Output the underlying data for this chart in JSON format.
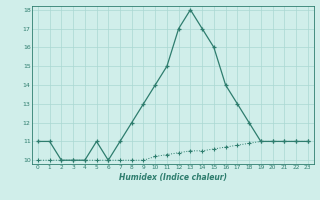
{
  "x": [
    0,
    1,
    2,
    3,
    4,
    5,
    6,
    7,
    8,
    9,
    10,
    11,
    12,
    13,
    14,
    15,
    16,
    17,
    18,
    19,
    20,
    21,
    22,
    23
  ],
  "line1": [
    11,
    11,
    10,
    10,
    10,
    11,
    10,
    11,
    12,
    13,
    14,
    15,
    17,
    18,
    17,
    16,
    14,
    13,
    12,
    11,
    11,
    11,
    11,
    11
  ],
  "line2": [
    10,
    10,
    10,
    10,
    10,
    10,
    10,
    10,
    10,
    10,
    10.2,
    10.3,
    10.4,
    10.5,
    10.5,
    10.6,
    10.7,
    10.8,
    10.9,
    11,
    11,
    11,
    11,
    11
  ],
  "line1_color": "#2e7d6e",
  "line2_color": "#2e7d6e",
  "bg_color": "#d0eeea",
  "grid_color": "#aad8d2",
  "xlabel": "Humidex (Indice chaleur)",
  "ylim_min": 9.8,
  "ylim_max": 18.2,
  "xlim_min": -0.5,
  "xlim_max": 23.5,
  "yticks": [
    10,
    11,
    12,
    13,
    14,
    15,
    16,
    17,
    18
  ],
  "xtick_labels": [
    "0",
    "1",
    "2",
    "3",
    "4",
    "5",
    "6",
    "7",
    "8",
    "9",
    "10",
    "11",
    "12",
    "13",
    "14",
    "15",
    "16",
    "17",
    "18",
    "19",
    "20",
    "21",
    "22",
    "23"
  ],
  "tick_color": "#2e7d6e",
  "label_color": "#2e7d6e",
  "spine_color": "#2e7d6e"
}
